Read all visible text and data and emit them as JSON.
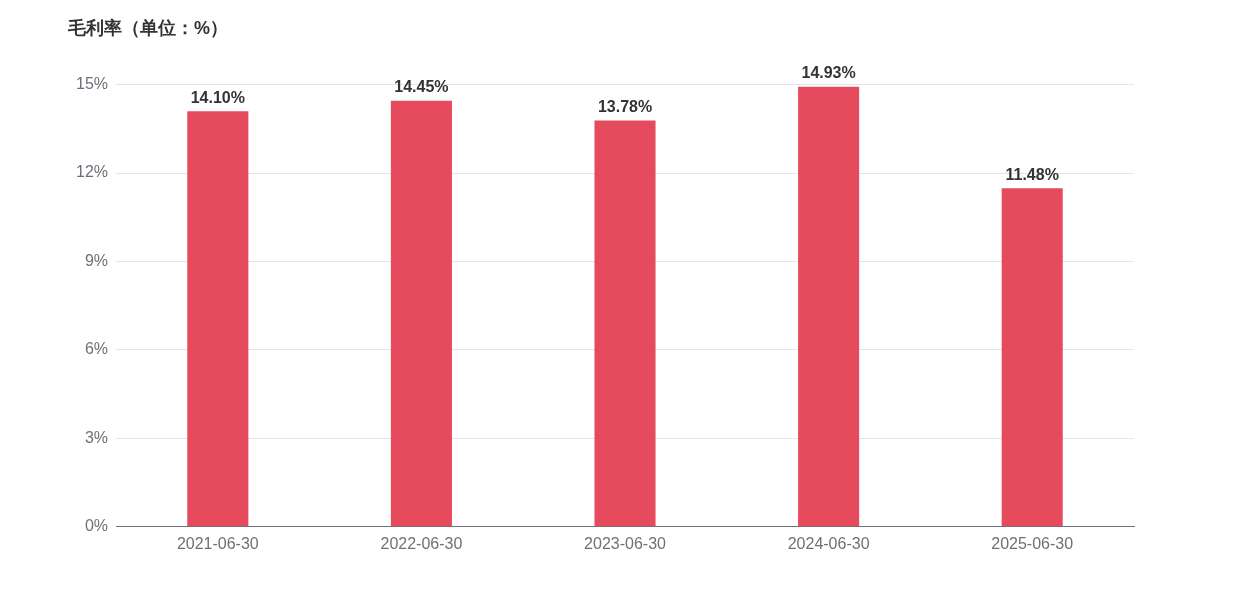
{
  "chart_data": {
    "type": "bar",
    "title": "毛利率（单位：%）",
    "categories": [
      "2021-06-30",
      "2022-06-30",
      "2023-06-30",
      "2024-06-30",
      "2025-06-30"
    ],
    "values": [
      14.1,
      14.45,
      13.78,
      14.93,
      11.48
    ],
    "value_labels": [
      "14.10%",
      "14.45%",
      "13.78%",
      "14.93%",
      "11.48%"
    ],
    "color": "#e64b5d",
    "ylim": [
      0,
      15
    ],
    "yticks": [
      {
        "value": 0,
        "label": "0%"
      },
      {
        "value": 3,
        "label": "3%"
      },
      {
        "value": 6,
        "label": "6%"
      },
      {
        "value": 9,
        "label": "9%"
      },
      {
        "value": 12,
        "label": "12%"
      },
      {
        "value": 15,
        "label": "15%"
      }
    ],
    "grid": "y",
    "legend": false
  }
}
